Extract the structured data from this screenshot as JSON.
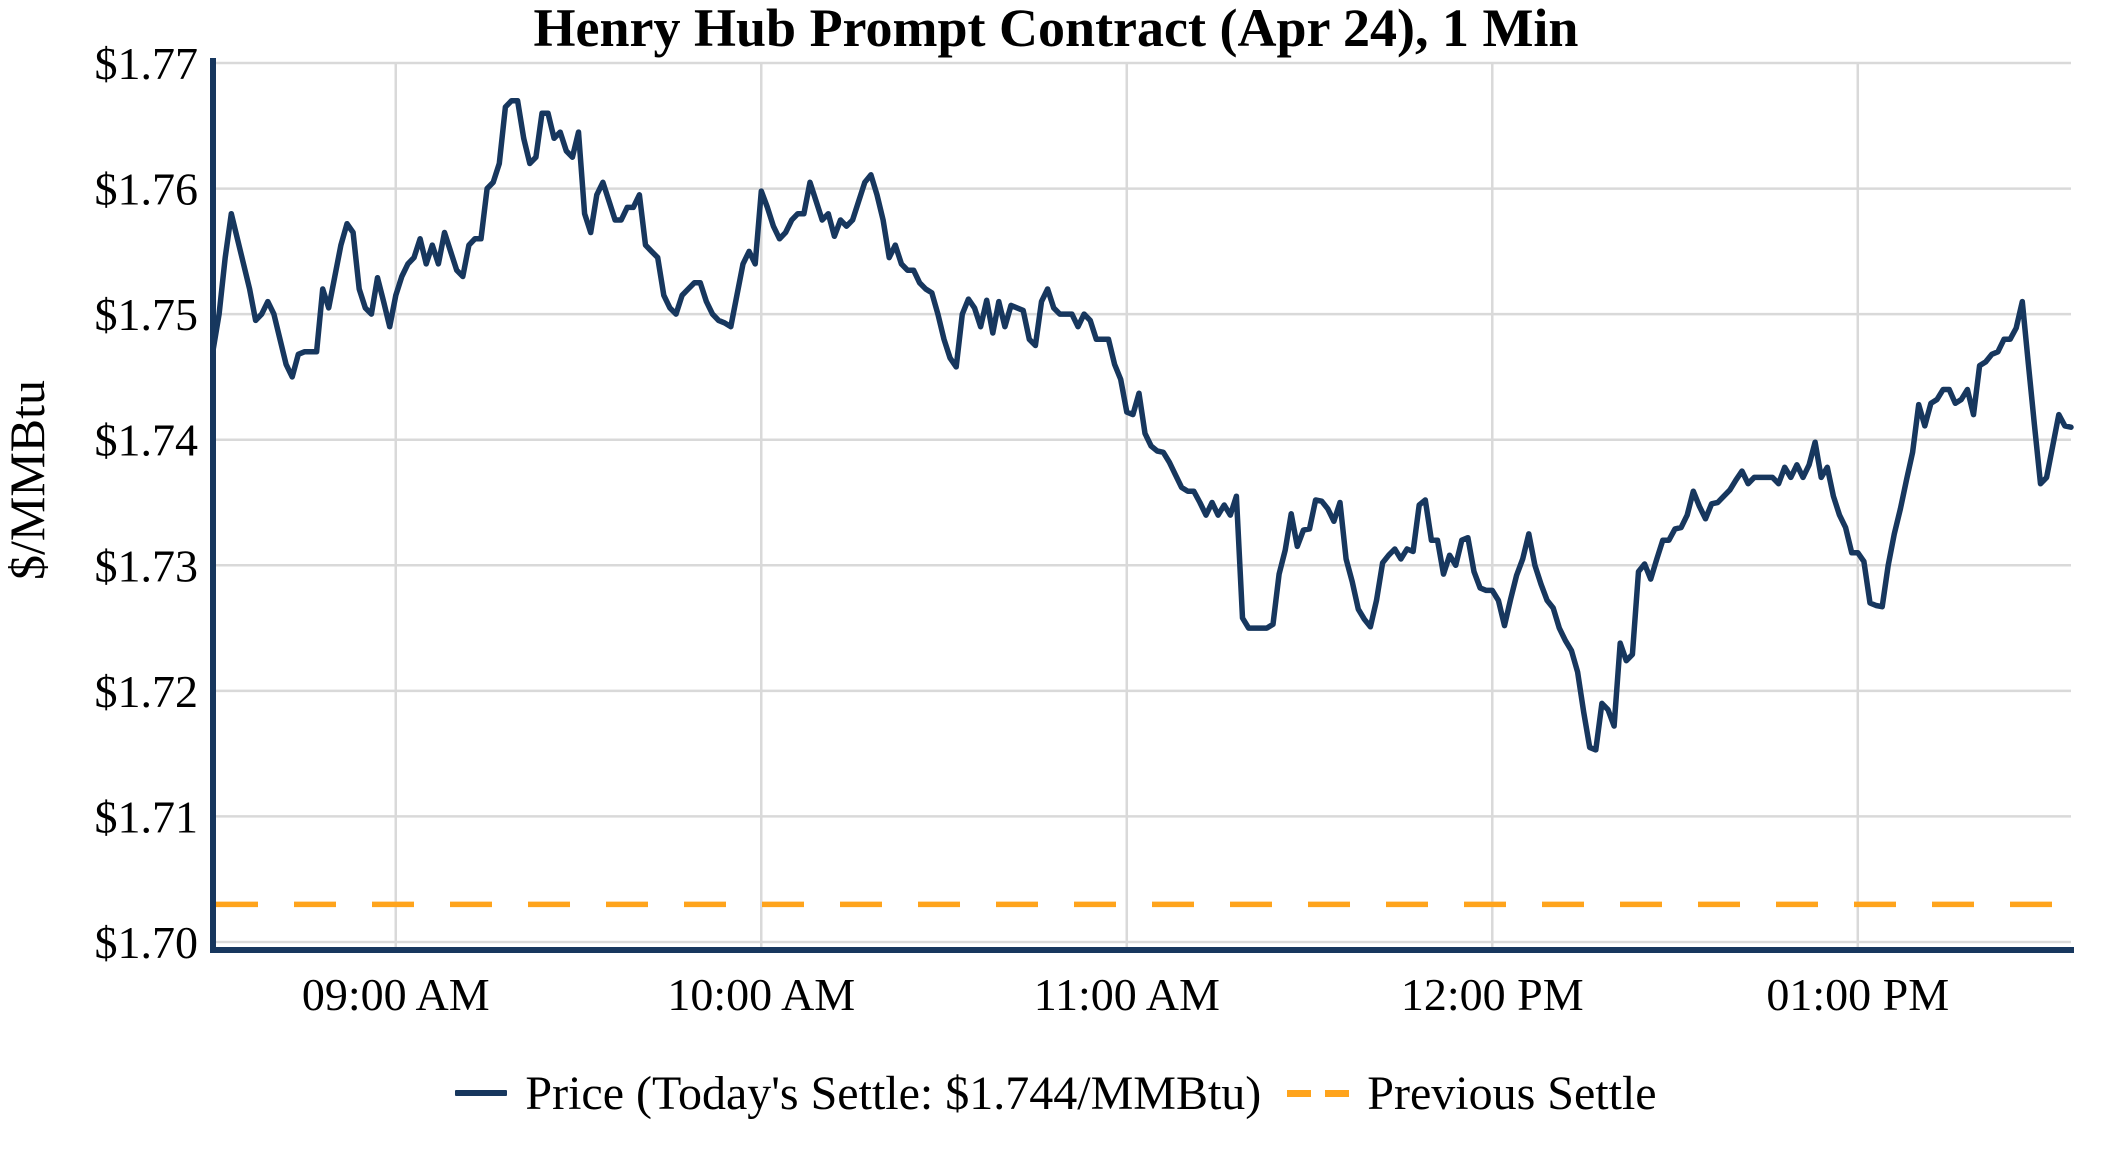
{
  "title": "Henry Hub Prompt Contract (Apr 24), 1 Min",
  "y_axis": {
    "label": "$/MMBtu",
    "ticks": [
      {
        "value": 1.7,
        "label": "$1.70"
      },
      {
        "value": 1.71,
        "label": "$1.71"
      },
      {
        "value": 1.72,
        "label": "$1.72"
      },
      {
        "value": 1.73,
        "label": "$1.73"
      },
      {
        "value": 1.74,
        "label": "$1.74"
      },
      {
        "value": 1.75,
        "label": "$1.75"
      },
      {
        "value": 1.76,
        "label": "$1.76"
      },
      {
        "value": 1.77,
        "label": "$1.77"
      }
    ]
  },
  "x_axis": {
    "ticks": [
      {
        "minute": 30,
        "label": "09:00 AM"
      },
      {
        "minute": 90,
        "label": "10:00 AM"
      },
      {
        "minute": 150,
        "label": "11:00 AM"
      },
      {
        "minute": 210,
        "label": "12:00 PM"
      },
      {
        "minute": 270,
        "label": "01:00 PM"
      }
    ]
  },
  "legend": {
    "price_label": "Price (Today's Settle: $1.744/MMBtu)",
    "previous_settle_label": "Previous Settle"
  },
  "colors": {
    "price_line": "#17375e",
    "previous_settle": "#ffa41c",
    "gridline": "#d9d9d9",
    "axis": "#17375e",
    "text": "#000000",
    "background": "#ffffff"
  },
  "chart_data": {
    "type": "line",
    "title": "Henry Hub Prompt Contract (Apr 24), 1 Min",
    "xlabel": "",
    "ylabel": "$/MMBtu",
    "ylim": [
      1.7,
      1.77
    ],
    "grid": true,
    "legend_position": "bottom-center",
    "x_start": "08:30 AM",
    "x_end": "01:35 PM",
    "x_interval_minutes": 1,
    "today_settle": 1.744,
    "previous_settle": 1.703,
    "series": [
      {
        "name": "Price",
        "style": "solid",
        "values": [
          1.7471,
          1.75,
          1.7545,
          1.758,
          1.756,
          1.754,
          1.752,
          1.7495,
          1.75,
          1.751,
          1.75,
          1.748,
          1.746,
          1.745,
          1.7468,
          1.747,
          1.747,
          1.747,
          1.752,
          1.7505,
          1.753,
          1.7555,
          1.7572,
          1.7565,
          1.752,
          1.7505,
          1.75,
          1.7529,
          1.751,
          1.749,
          1.7515,
          1.753,
          1.754,
          1.7545,
          1.756,
          1.754,
          1.7555,
          1.754,
          1.7565,
          1.755,
          1.7535,
          1.753,
          1.7555,
          1.756,
          1.756,
          1.76,
          1.7605,
          1.762,
          1.7665,
          1.767,
          1.767,
          1.764,
          1.762,
          1.7625,
          1.766,
          1.766,
          1.764,
          1.7645,
          1.763,
          1.7625,
          1.7645,
          1.758,
          1.7565,
          1.7595,
          1.7605,
          1.759,
          1.7575,
          1.7575,
          1.7585,
          1.7585,
          1.7595,
          1.7555,
          1.755,
          1.7545,
          1.7515,
          1.7505,
          1.75,
          1.7515,
          1.752,
          1.7525,
          1.7525,
          1.751,
          1.75,
          1.7495,
          1.7493,
          1.749,
          1.7515,
          1.754,
          1.755,
          1.754,
          1.7598,
          1.7585,
          1.757,
          1.756,
          1.7565,
          1.7575,
          1.758,
          1.758,
          1.7605,
          1.759,
          1.7575,
          1.758,
          1.7562,
          1.7575,
          1.757,
          1.7575,
          1.759,
          1.7605,
          1.7611,
          1.7595,
          1.7575,
          1.7545,
          1.7555,
          1.754,
          1.7535,
          1.7535,
          1.7525,
          1.752,
          1.7517,
          1.75,
          1.748,
          1.7465,
          1.7458,
          1.75,
          1.7512,
          1.7505,
          1.749,
          1.7511,
          1.7485,
          1.751,
          1.749,
          1.7507,
          1.7505,
          1.7503,
          1.748,
          1.7475,
          1.751,
          1.752,
          1.7505,
          1.75,
          1.75,
          1.75,
          1.749,
          1.75,
          1.7495,
          1.748,
          1.748,
          1.748,
          1.746,
          1.7448,
          1.7422,
          1.742,
          1.7437,
          1.7405,
          1.7395,
          1.7391,
          1.739,
          1.7382,
          1.7372,
          1.7362,
          1.7359,
          1.7359,
          1.735,
          1.734,
          1.735,
          1.734,
          1.7348,
          1.734,
          1.7355,
          1.7258,
          1.725,
          1.725,
          1.725,
          1.725,
          1.7253,
          1.7293,
          1.7312,
          1.7341,
          1.7315,
          1.7328,
          1.7329,
          1.7352,
          1.7351,
          1.7345,
          1.7335,
          1.735,
          1.7305,
          1.7287,
          1.7265,
          1.7257,
          1.7251,
          1.7272,
          1.7302,
          1.7308,
          1.7313,
          1.7305,
          1.7313,
          1.7311,
          1.7348,
          1.7352,
          1.732,
          1.732,
          1.7293,
          1.7308,
          1.73,
          1.732,
          1.7322,
          1.7295,
          1.7282,
          1.728,
          1.728,
          1.7272,
          1.7252,
          1.7273,
          1.7292,
          1.7305,
          1.7325,
          1.73,
          1.7285,
          1.7272,
          1.7266,
          1.725,
          1.724,
          1.7232,
          1.7215,
          1.7183,
          1.7155,
          1.7153,
          1.719,
          1.7185,
          1.7172,
          1.7238,
          1.7224,
          1.7229,
          1.7295,
          1.7301,
          1.7289,
          1.7305,
          1.732,
          1.732,
          1.7329,
          1.733,
          1.734,
          1.7359,
          1.7347,
          1.7337,
          1.7349,
          1.735,
          1.7355,
          1.736,
          1.7368,
          1.7375,
          1.7365,
          1.737,
          1.737,
          1.737,
          1.737,
          1.7365,
          1.7378,
          1.737,
          1.738,
          1.737,
          1.738,
          1.7398,
          1.737,
          1.7378,
          1.7355,
          1.734,
          1.733,
          1.731,
          1.731,
          1.7303,
          1.727,
          1.7268,
          1.7267,
          1.73,
          1.7325,
          1.7345,
          1.7368,
          1.739,
          1.7428,
          1.7411,
          1.7429,
          1.7432,
          1.744,
          1.744,
          1.7429,
          1.7432,
          1.744,
          1.742,
          1.7459,
          1.7462,
          1.7468,
          1.747,
          1.748,
          1.748,
          1.7489,
          1.751,
          1.746,
          1.7412,
          1.7365,
          1.737,
          1.7395,
          1.742,
          1.7411,
          1.741
        ]
      },
      {
        "name": "Previous Settle",
        "style": "dashed",
        "value": 1.703
      }
    ]
  }
}
